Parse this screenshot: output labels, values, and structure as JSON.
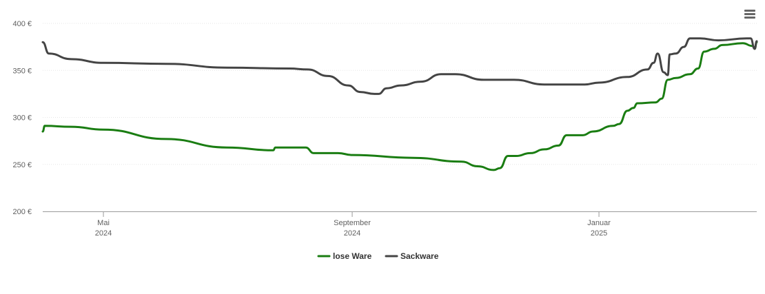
{
  "menu": {
    "icon": "hamburger-menu-icon"
  },
  "chart_data": {
    "type": "line",
    "title": "",
    "xlabel": "",
    "ylabel": "",
    "x_range": [
      "2024-04-01",
      "2025-03-20"
    ],
    "ylim": [
      200,
      400
    ],
    "y_ticks": [
      {
        "value": 200,
        "label": "200 €"
      },
      {
        "value": 250,
        "label": "250 €"
      },
      {
        "value": 300,
        "label": "300 €"
      },
      {
        "value": 350,
        "label": "350 €"
      },
      {
        "value": 400,
        "label": "400 €"
      }
    ],
    "x_ticks": [
      {
        "date": "2024-05-01",
        "month": "Mai",
        "year": "2024"
      },
      {
        "date": "2024-09-01",
        "month": "September",
        "year": "2024"
      },
      {
        "date": "2025-01-01",
        "month": "Januar",
        "year": "2025"
      }
    ],
    "grid": true,
    "legend_position": "bottom-center",
    "series": [
      {
        "name": "lose Ware",
        "color": "#1a7d12",
        "points": [
          [
            "2024-04-01",
            285
          ],
          [
            "2024-04-02",
            291
          ],
          [
            "2024-04-15",
            290
          ],
          [
            "2024-05-01",
            287
          ],
          [
            "2024-06-01",
            277
          ],
          [
            "2024-07-01",
            268
          ],
          [
            "2024-07-24",
            265
          ],
          [
            "2024-07-25",
            268
          ],
          [
            "2024-08-09",
            268
          ],
          [
            "2024-08-13",
            262
          ],
          [
            "2024-08-25",
            262
          ],
          [
            "2024-09-01",
            260
          ],
          [
            "2024-10-01",
            257
          ],
          [
            "2024-10-25",
            253
          ],
          [
            "2024-11-02",
            248
          ],
          [
            "2024-11-10",
            244
          ],
          [
            "2024-11-13",
            246
          ],
          [
            "2024-11-17",
            259
          ],
          [
            "2024-11-21",
            259
          ],
          [
            "2024-11-28",
            262
          ],
          [
            "2024-12-05",
            266
          ],
          [
            "2024-12-12",
            270
          ],
          [
            "2024-12-16",
            281
          ],
          [
            "2024-12-24",
            281
          ],
          [
            "2024-12-29",
            285
          ],
          [
            "2025-01-08",
            291
          ],
          [
            "2025-01-11",
            293
          ],
          [
            "2025-01-15",
            307
          ],
          [
            "2025-01-18",
            310
          ],
          [
            "2025-01-20",
            315
          ],
          [
            "2025-01-29",
            316
          ],
          [
            "2025-02-01",
            320
          ],
          [
            "2025-02-04",
            340
          ],
          [
            "2025-02-08",
            342
          ],
          [
            "2025-02-15",
            346
          ],
          [
            "2025-02-19",
            352
          ],
          [
            "2025-02-22",
            370
          ],
          [
            "2025-02-27",
            373
          ],
          [
            "2025-03-03",
            377
          ],
          [
            "2025-03-13",
            379
          ],
          [
            "2025-03-18",
            376
          ],
          [
            "2025-03-19",
            373
          ],
          [
            "2025-03-20",
            380
          ]
        ]
      },
      {
        "name": "Sackware",
        "color": "#444444",
        "points": [
          [
            "2024-04-01",
            380
          ],
          [
            "2024-04-04",
            368
          ],
          [
            "2024-04-15",
            362
          ],
          [
            "2024-05-01",
            358
          ],
          [
            "2024-06-01",
            357
          ],
          [
            "2024-07-01",
            353
          ],
          [
            "2024-08-01",
            352
          ],
          [
            "2024-08-10",
            351
          ],
          [
            "2024-08-20",
            344
          ],
          [
            "2024-08-30",
            334
          ],
          [
            "2024-09-05",
            327
          ],
          [
            "2024-09-12",
            325
          ],
          [
            "2024-09-14",
            325
          ],
          [
            "2024-09-18",
            331
          ],
          [
            "2024-09-25",
            334
          ],
          [
            "2024-10-05",
            338
          ],
          [
            "2024-10-15",
            346
          ],
          [
            "2024-10-22",
            346
          ],
          [
            "2024-11-05",
            340
          ],
          [
            "2024-11-20",
            340
          ],
          [
            "2024-12-05",
            335
          ],
          [
            "2024-12-25",
            335
          ],
          [
            "2025-01-01",
            337
          ],
          [
            "2025-01-15",
            343
          ],
          [
            "2025-01-25",
            351
          ],
          [
            "2025-01-28",
            358
          ],
          [
            "2025-01-30",
            368
          ],
          [
            "2025-02-02",
            348
          ],
          [
            "2025-02-04",
            345
          ],
          [
            "2025-02-05",
            367
          ],
          [
            "2025-02-08",
            368
          ],
          [
            "2025-02-12",
            375
          ],
          [
            "2025-02-15",
            384
          ],
          [
            "2025-02-20",
            384
          ],
          [
            "2025-03-01",
            382
          ],
          [
            "2025-03-15",
            384
          ],
          [
            "2025-03-17",
            384
          ],
          [
            "2025-03-19",
            373
          ],
          [
            "2025-03-20",
            381
          ]
        ]
      }
    ]
  }
}
